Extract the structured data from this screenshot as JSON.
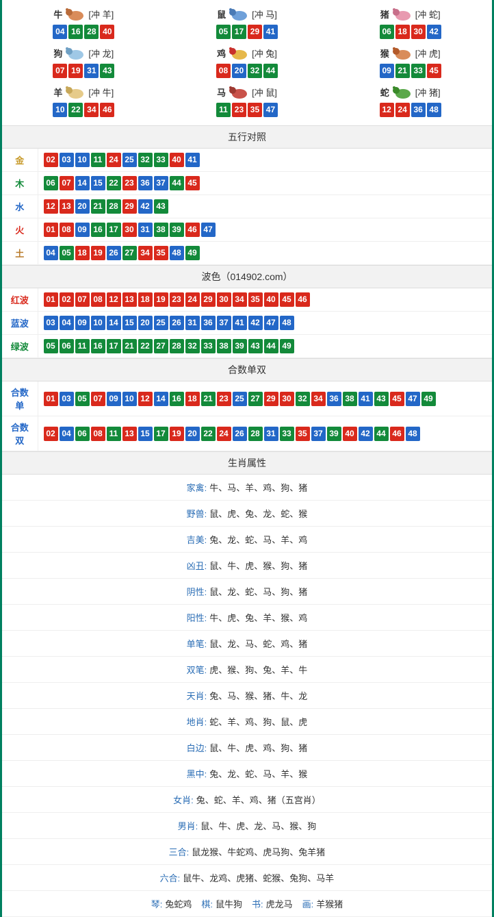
{
  "colors": {
    "red": "#d9291c",
    "blue": "#2367c7",
    "green": "#138a3a"
  },
  "zodiac_icons": {
    "ox": {
      "body": "#d98c5a",
      "accent": "#b86b3a"
    },
    "rat": {
      "body": "#6fa0d9",
      "accent": "#4a7ab5"
    },
    "pig": {
      "body": "#e89ab0",
      "accent": "#c76f8a"
    },
    "dog": {
      "body": "#9fc8e6",
      "accent": "#6fa0c4"
    },
    "rooster": {
      "body": "#e6b84a",
      "accent": "#c9302c"
    },
    "monkey": {
      "body": "#d98c5a",
      "accent": "#b35a2a"
    },
    "goat": {
      "body": "#e6cb8a",
      "accent": "#c7a85a"
    },
    "horse": {
      "body": "#c9524a",
      "accent": "#9e3a32"
    },
    "snake": {
      "body": "#5aa84a",
      "accent": "#3a8a2a"
    }
  },
  "zodiac": [
    {
      "name": "牛",
      "icon": "ox",
      "conflict": "[冲 羊]",
      "balls": [
        {
          "n": "04",
          "c": "blue"
        },
        {
          "n": "16",
          "c": "green"
        },
        {
          "n": "28",
          "c": "green"
        },
        {
          "n": "40",
          "c": "red"
        }
      ]
    },
    {
      "name": "鼠",
      "icon": "rat",
      "conflict": "[冲 马]",
      "balls": [
        {
          "n": "05",
          "c": "green"
        },
        {
          "n": "17",
          "c": "green"
        },
        {
          "n": "29",
          "c": "red"
        },
        {
          "n": "41",
          "c": "blue"
        }
      ]
    },
    {
      "name": "猪",
      "icon": "pig",
      "conflict": "[冲 蛇]",
      "balls": [
        {
          "n": "06",
          "c": "green"
        },
        {
          "n": "18",
          "c": "red"
        },
        {
          "n": "30",
          "c": "red"
        },
        {
          "n": "42",
          "c": "blue"
        }
      ]
    },
    {
      "name": "狗",
      "icon": "dog",
      "conflict": "[冲 龙]",
      "balls": [
        {
          "n": "07",
          "c": "red"
        },
        {
          "n": "19",
          "c": "red"
        },
        {
          "n": "31",
          "c": "blue"
        },
        {
          "n": "43",
          "c": "green"
        }
      ]
    },
    {
      "name": "鸡",
      "icon": "rooster",
      "conflict": "[冲 兔]",
      "balls": [
        {
          "n": "08",
          "c": "red"
        },
        {
          "n": "20",
          "c": "blue"
        },
        {
          "n": "32",
          "c": "green"
        },
        {
          "n": "44",
          "c": "green"
        }
      ]
    },
    {
      "name": "猴",
      "icon": "monkey",
      "conflict": "[冲 虎]",
      "balls": [
        {
          "n": "09",
          "c": "blue"
        },
        {
          "n": "21",
          "c": "green"
        },
        {
          "n": "33",
          "c": "green"
        },
        {
          "n": "45",
          "c": "red"
        }
      ]
    },
    {
      "name": "羊",
      "icon": "goat",
      "conflict": "[冲 牛]",
      "balls": [
        {
          "n": "10",
          "c": "blue"
        },
        {
          "n": "22",
          "c": "green"
        },
        {
          "n": "34",
          "c": "red"
        },
        {
          "n": "46",
          "c": "red"
        }
      ]
    },
    {
      "name": "马",
      "icon": "horse",
      "conflict": "[冲 鼠]",
      "balls": [
        {
          "n": "11",
          "c": "green"
        },
        {
          "n": "23",
          "c": "red"
        },
        {
          "n": "35",
          "c": "red"
        },
        {
          "n": "47",
          "c": "blue"
        }
      ]
    },
    {
      "name": "蛇",
      "icon": "snake",
      "conflict": "[冲 猪]",
      "balls": [
        {
          "n": "12",
          "c": "red"
        },
        {
          "n": "24",
          "c": "red"
        },
        {
          "n": "36",
          "c": "blue"
        },
        {
          "n": "48",
          "c": "blue"
        }
      ]
    }
  ],
  "sections": {
    "wuxing_title": "五行对照",
    "bose_title": "波色（014902.com）",
    "heshu_title": "合数单双",
    "shengxiao_title": "生肖属性"
  },
  "wuxing": [
    {
      "label": "金",
      "label_color": "#c79a2a",
      "balls": [
        {
          "n": "02",
          "c": "red"
        },
        {
          "n": "03",
          "c": "blue"
        },
        {
          "n": "10",
          "c": "blue"
        },
        {
          "n": "11",
          "c": "green"
        },
        {
          "n": "24",
          "c": "red"
        },
        {
          "n": "25",
          "c": "blue"
        },
        {
          "n": "32",
          "c": "green"
        },
        {
          "n": "33",
          "c": "green"
        },
        {
          "n": "40",
          "c": "red"
        },
        {
          "n": "41",
          "c": "blue"
        }
      ]
    },
    {
      "label": "木",
      "label_color": "#138a3a",
      "balls": [
        {
          "n": "06",
          "c": "green"
        },
        {
          "n": "07",
          "c": "red"
        },
        {
          "n": "14",
          "c": "blue"
        },
        {
          "n": "15",
          "c": "blue"
        },
        {
          "n": "22",
          "c": "green"
        },
        {
          "n": "23",
          "c": "red"
        },
        {
          "n": "36",
          "c": "blue"
        },
        {
          "n": "37",
          "c": "blue"
        },
        {
          "n": "44",
          "c": "green"
        },
        {
          "n": "45",
          "c": "red"
        }
      ]
    },
    {
      "label": "水",
      "label_color": "#2367c7",
      "balls": [
        {
          "n": "12",
          "c": "red"
        },
        {
          "n": "13",
          "c": "red"
        },
        {
          "n": "20",
          "c": "blue"
        },
        {
          "n": "21",
          "c": "green"
        },
        {
          "n": "28",
          "c": "green"
        },
        {
          "n": "29",
          "c": "red"
        },
        {
          "n": "42",
          "c": "blue"
        },
        {
          "n": "43",
          "c": "green"
        }
      ]
    },
    {
      "label": "火",
      "label_color": "#d9291c",
      "balls": [
        {
          "n": "01",
          "c": "red"
        },
        {
          "n": "08",
          "c": "red"
        },
        {
          "n": "09",
          "c": "blue"
        },
        {
          "n": "16",
          "c": "green"
        },
        {
          "n": "17",
          "c": "green"
        },
        {
          "n": "30",
          "c": "red"
        },
        {
          "n": "31",
          "c": "blue"
        },
        {
          "n": "38",
          "c": "green"
        },
        {
          "n": "39",
          "c": "green"
        },
        {
          "n": "46",
          "c": "red"
        },
        {
          "n": "47",
          "c": "blue"
        }
      ]
    },
    {
      "label": "土",
      "label_color": "#b87a2a",
      "balls": [
        {
          "n": "04",
          "c": "blue"
        },
        {
          "n": "05",
          "c": "green"
        },
        {
          "n": "18",
          "c": "red"
        },
        {
          "n": "19",
          "c": "red"
        },
        {
          "n": "26",
          "c": "blue"
        },
        {
          "n": "27",
          "c": "green"
        },
        {
          "n": "34",
          "c": "red"
        },
        {
          "n": "35",
          "c": "red"
        },
        {
          "n": "48",
          "c": "blue"
        },
        {
          "n": "49",
          "c": "green"
        }
      ]
    }
  ],
  "bose": [
    {
      "label": "红波",
      "label_color": "#d9291c",
      "balls": [
        {
          "n": "01",
          "c": "red"
        },
        {
          "n": "02",
          "c": "red"
        },
        {
          "n": "07",
          "c": "red"
        },
        {
          "n": "08",
          "c": "red"
        },
        {
          "n": "12",
          "c": "red"
        },
        {
          "n": "13",
          "c": "red"
        },
        {
          "n": "18",
          "c": "red"
        },
        {
          "n": "19",
          "c": "red"
        },
        {
          "n": "23",
          "c": "red"
        },
        {
          "n": "24",
          "c": "red"
        },
        {
          "n": "29",
          "c": "red"
        },
        {
          "n": "30",
          "c": "red"
        },
        {
          "n": "34",
          "c": "red"
        },
        {
          "n": "35",
          "c": "red"
        },
        {
          "n": "40",
          "c": "red"
        },
        {
          "n": "45",
          "c": "red"
        },
        {
          "n": "46",
          "c": "red"
        }
      ]
    },
    {
      "label": "蓝波",
      "label_color": "#2367c7",
      "balls": [
        {
          "n": "03",
          "c": "blue"
        },
        {
          "n": "04",
          "c": "blue"
        },
        {
          "n": "09",
          "c": "blue"
        },
        {
          "n": "10",
          "c": "blue"
        },
        {
          "n": "14",
          "c": "blue"
        },
        {
          "n": "15",
          "c": "blue"
        },
        {
          "n": "20",
          "c": "blue"
        },
        {
          "n": "25",
          "c": "blue"
        },
        {
          "n": "26",
          "c": "blue"
        },
        {
          "n": "31",
          "c": "blue"
        },
        {
          "n": "36",
          "c": "blue"
        },
        {
          "n": "37",
          "c": "blue"
        },
        {
          "n": "41",
          "c": "blue"
        },
        {
          "n": "42",
          "c": "blue"
        },
        {
          "n": "47",
          "c": "blue"
        },
        {
          "n": "48",
          "c": "blue"
        }
      ]
    },
    {
      "label": "绿波",
      "label_color": "#138a3a",
      "balls": [
        {
          "n": "05",
          "c": "green"
        },
        {
          "n": "06",
          "c": "green"
        },
        {
          "n": "11",
          "c": "green"
        },
        {
          "n": "16",
          "c": "green"
        },
        {
          "n": "17",
          "c": "green"
        },
        {
          "n": "21",
          "c": "green"
        },
        {
          "n": "22",
          "c": "green"
        },
        {
          "n": "27",
          "c": "green"
        },
        {
          "n": "28",
          "c": "green"
        },
        {
          "n": "32",
          "c": "green"
        },
        {
          "n": "33",
          "c": "green"
        },
        {
          "n": "38",
          "c": "green"
        },
        {
          "n": "39",
          "c": "green"
        },
        {
          "n": "43",
          "c": "green"
        },
        {
          "n": "44",
          "c": "green"
        },
        {
          "n": "49",
          "c": "green"
        }
      ]
    }
  ],
  "heshu": [
    {
      "label": "合数单",
      "label_color": "#2367c7",
      "balls": [
        {
          "n": "01",
          "c": "red"
        },
        {
          "n": "03",
          "c": "blue"
        },
        {
          "n": "05",
          "c": "green"
        },
        {
          "n": "07",
          "c": "red"
        },
        {
          "n": "09",
          "c": "blue"
        },
        {
          "n": "10",
          "c": "blue"
        },
        {
          "n": "12",
          "c": "red"
        },
        {
          "n": "14",
          "c": "blue"
        },
        {
          "n": "16",
          "c": "green"
        },
        {
          "n": "18",
          "c": "red"
        },
        {
          "n": "21",
          "c": "green"
        },
        {
          "n": "23",
          "c": "red"
        },
        {
          "n": "25",
          "c": "blue"
        },
        {
          "n": "27",
          "c": "green"
        },
        {
          "n": "29",
          "c": "red"
        },
        {
          "n": "30",
          "c": "red"
        },
        {
          "n": "32",
          "c": "green"
        },
        {
          "n": "34",
          "c": "red"
        },
        {
          "n": "36",
          "c": "blue"
        },
        {
          "n": "38",
          "c": "green"
        },
        {
          "n": "41",
          "c": "blue"
        },
        {
          "n": "43",
          "c": "green"
        },
        {
          "n": "45",
          "c": "red"
        },
        {
          "n": "47",
          "c": "blue"
        },
        {
          "n": "49",
          "c": "green"
        }
      ]
    },
    {
      "label": "合数双",
      "label_color": "#2367c7",
      "balls": [
        {
          "n": "02",
          "c": "red"
        },
        {
          "n": "04",
          "c": "blue"
        },
        {
          "n": "06",
          "c": "green"
        },
        {
          "n": "08",
          "c": "red"
        },
        {
          "n": "11",
          "c": "green"
        },
        {
          "n": "13",
          "c": "red"
        },
        {
          "n": "15",
          "c": "blue"
        },
        {
          "n": "17",
          "c": "green"
        },
        {
          "n": "19",
          "c": "red"
        },
        {
          "n": "20",
          "c": "blue"
        },
        {
          "n": "22",
          "c": "green"
        },
        {
          "n": "24",
          "c": "red"
        },
        {
          "n": "26",
          "c": "blue"
        },
        {
          "n": "28",
          "c": "green"
        },
        {
          "n": "31",
          "c": "blue"
        },
        {
          "n": "33",
          "c": "green"
        },
        {
          "n": "35",
          "c": "red"
        },
        {
          "n": "37",
          "c": "blue"
        },
        {
          "n": "39",
          "c": "green"
        },
        {
          "n": "40",
          "c": "red"
        },
        {
          "n": "42",
          "c": "blue"
        },
        {
          "n": "44",
          "c": "green"
        },
        {
          "n": "46",
          "c": "red"
        },
        {
          "n": "48",
          "c": "blue"
        }
      ]
    }
  ],
  "attrs": [
    {
      "label": "家禽:",
      "value": "牛、马、羊、鸡、狗、猪"
    },
    {
      "label": "野兽:",
      "value": "鼠、虎、兔、龙、蛇、猴"
    },
    {
      "label": "吉美:",
      "value": "兔、龙、蛇、马、羊、鸡"
    },
    {
      "label": "凶丑:",
      "value": "鼠、牛、虎、猴、狗、猪"
    },
    {
      "label": "阴性:",
      "value": "鼠、龙、蛇、马、狗、猪"
    },
    {
      "label": "阳性:",
      "value": "牛、虎、兔、羊、猴、鸡"
    },
    {
      "label": "单笔:",
      "value": "鼠、龙、马、蛇、鸡、猪"
    },
    {
      "label": "双笔:",
      "value": "虎、猴、狗、兔、羊、牛"
    },
    {
      "label": "天肖:",
      "value": "兔、马、猴、猪、牛、龙"
    },
    {
      "label": "地肖:",
      "value": "蛇、羊、鸡、狗、鼠、虎"
    },
    {
      "label": "白边:",
      "value": "鼠、牛、虎、鸡、狗、猪"
    },
    {
      "label": "黑中:",
      "value": "兔、龙、蛇、马、羊、猴"
    },
    {
      "label": "女肖:",
      "value": "兔、蛇、羊、鸡、猪（五宫肖）"
    },
    {
      "label": "男肖:",
      "value": "鼠、牛、虎、龙、马、猴、狗"
    },
    {
      "label": "三合:",
      "value": "鼠龙猴、牛蛇鸡、虎马狗、兔羊猪"
    },
    {
      "label": "六合:",
      "value": "鼠牛、龙鸡、虎猪、蛇猴、兔狗、马羊"
    }
  ],
  "bottom_line": {
    "parts": [
      {
        "label": "琴:",
        "value": "兔蛇鸡"
      },
      {
        "label": "棋:",
        "value": "鼠牛狗"
      },
      {
        "label": "书:",
        "value": "虎龙马"
      },
      {
        "label": "画:",
        "value": "羊猴猪"
      }
    ]
  }
}
